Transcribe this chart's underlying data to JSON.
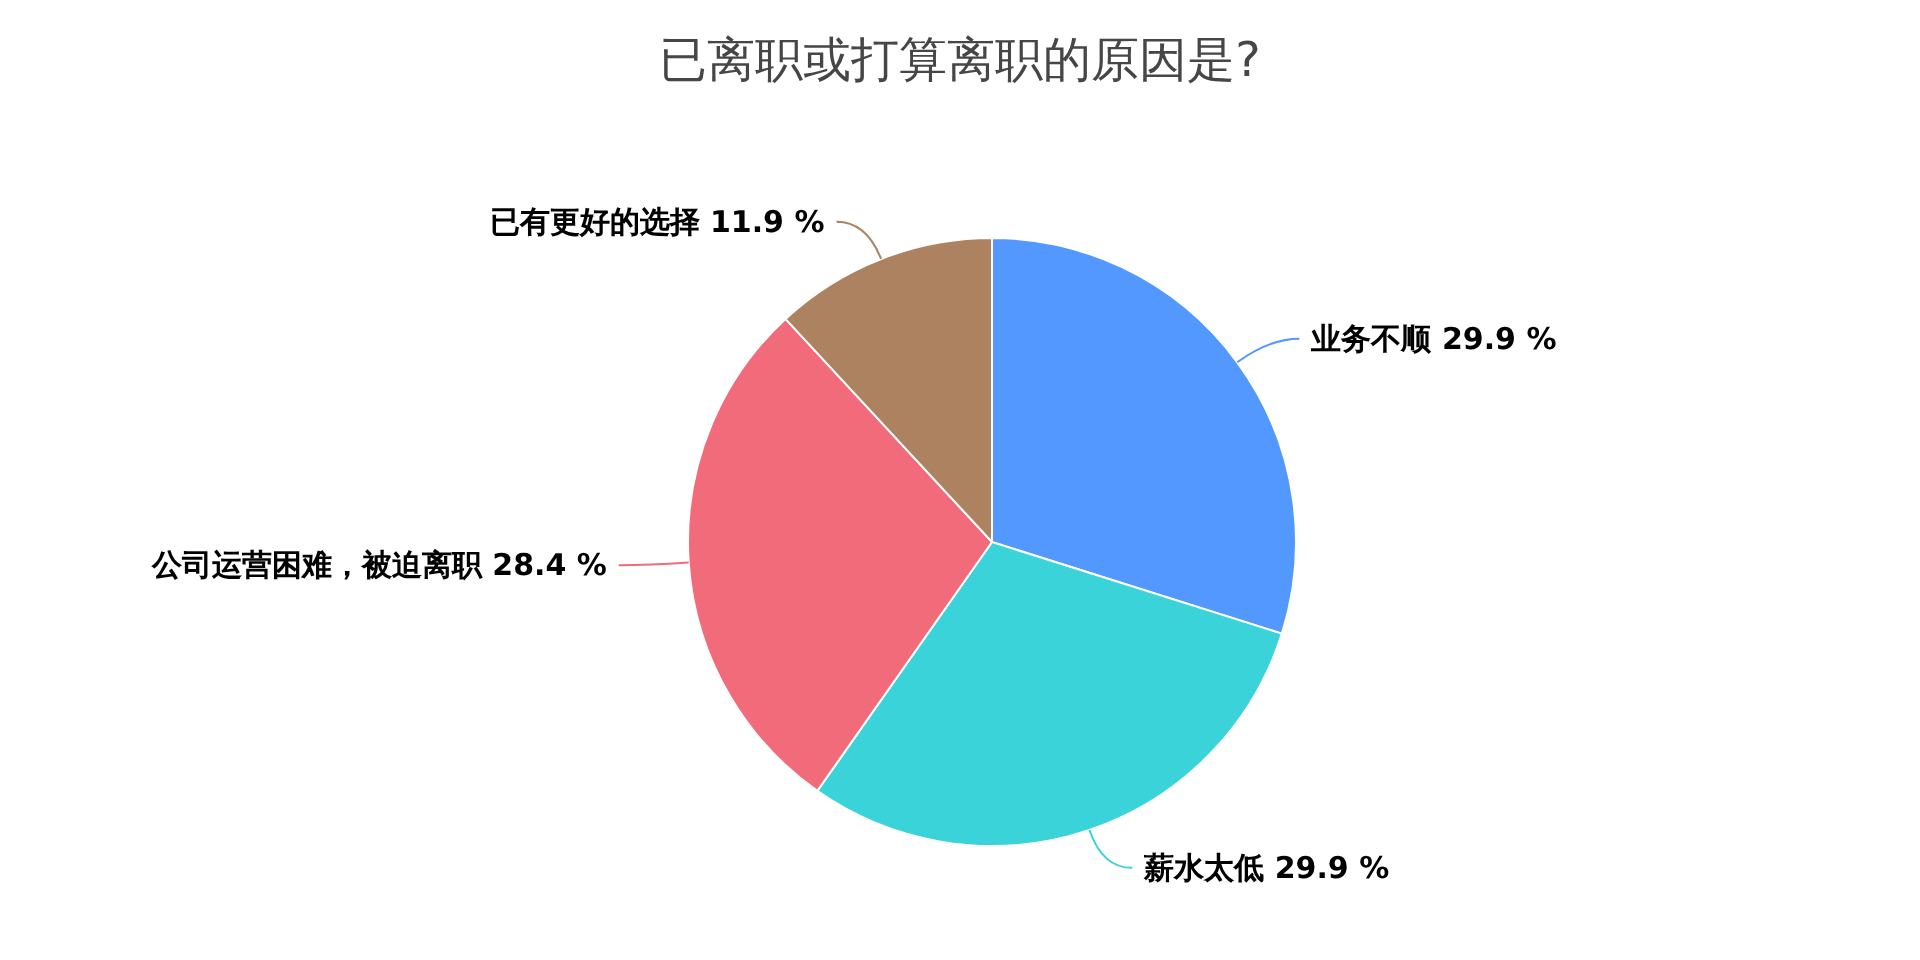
{
  "chart_data": {
    "type": "pie",
    "title": "已离职或打算离职的原因是?",
    "categories": [
      "业务不顺",
      "薪水太低",
      "公司运营困难，被迫离职",
      "已有更好的选择"
    ],
    "values": [
      29.9,
      29.9,
      28.4,
      11.9
    ],
    "value_labels": [
      "29.9 %",
      "29.9 %",
      "28.4 %",
      "11.9 %"
    ],
    "colors": [
      "#5298ff",
      "#3ad3d9",
      "#f26b7a",
      "#ac8260"
    ]
  }
}
